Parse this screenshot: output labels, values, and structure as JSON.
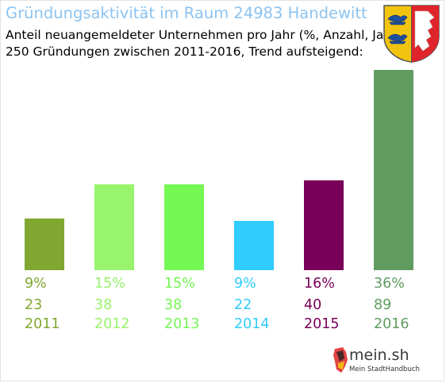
{
  "header": {
    "title": "Gründungsaktivität im Raum 24983 Handewitt",
    "subtitle_line1": "Anteil neuangemeldeter Unternehmen pro Jahr (%, Anzahl, Jahr)",
    "subtitle_line2": "250 Gründungen zwischen 2011-2016, Trend aufsteigend:"
  },
  "logo": {
    "name": "mein.sh",
    "tagline": "Mein StadtHandbuch"
  },
  "colors": {
    "title": "#8cc3f0",
    "2011": "#80a830",
    "2012": "#98f46c",
    "2013": "#74f854",
    "2014": "#30ccfc",
    "2015": "#780058",
    "2016": "#609c60"
  },
  "chart_data": {
    "type": "bar",
    "categories": [
      "2011",
      "2012",
      "2013",
      "2014",
      "2015",
      "2016"
    ],
    "percent_labels": [
      "9%",
      "15%",
      "15%",
      "9%",
      "16%",
      "36%"
    ],
    "values": [
      23,
      38,
      38,
      22,
      40,
      89
    ],
    "colors": [
      "#80a830",
      "#98f46c",
      "#74f854",
      "#30ccfc",
      "#780058",
      "#609c60"
    ]
  }
}
